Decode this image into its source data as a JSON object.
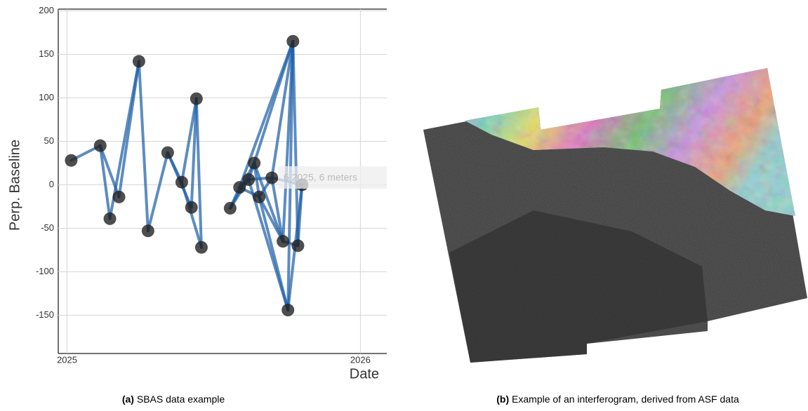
{
  "chart_data": {
    "type": "network",
    "xlabel": "Date",
    "ylabel": "Perp. Baseline",
    "x": [
      2025.014,
      2025.113,
      2025.146,
      2025.177,
      2025.245,
      2025.276,
      2025.343,
      2025.391,
      2025.424,
      2025.441,
      2025.458,
      2025.556,
      2025.588,
      2025.619,
      2025.638,
      2025.655,
      2025.698,
      2025.736,
      2025.753,
      2025.77,
      2025.787,
      2025.801
    ],
    "values": [
      28,
      45,
      -39,
      -14,
      142,
      -53,
      37,
      3,
      -26,
      99,
      -72,
      -27,
      -3,
      6,
      25,
      -14,
      8,
      -65,
      -144,
      165,
      -70,
      0
    ],
    "edges": [
      [
        0,
        1
      ],
      [
        1,
        2
      ],
      [
        1,
        3
      ],
      [
        2,
        4
      ],
      [
        3,
        4
      ],
      [
        4,
        5
      ],
      [
        5,
        6
      ],
      [
        6,
        7
      ],
      [
        6,
        8
      ],
      [
        7,
        9
      ],
      [
        8,
        9
      ],
      [
        9,
        10
      ],
      [
        7,
        10
      ],
      [
        11,
        12
      ],
      [
        11,
        14
      ],
      [
        11,
        13
      ],
      [
        12,
        13
      ],
      [
        12,
        15
      ],
      [
        13,
        14
      ],
      [
        13,
        16
      ],
      [
        14,
        15
      ],
      [
        14,
        17
      ],
      [
        15,
        16
      ],
      [
        15,
        18
      ],
      [
        16,
        17
      ],
      [
        16,
        19
      ],
      [
        14,
        19
      ],
      [
        12,
        19
      ],
      [
        17,
        19
      ],
      [
        18,
        19
      ],
      [
        17,
        20
      ],
      [
        18,
        21
      ],
      [
        19,
        20
      ],
      [
        20,
        21
      ],
      [
        13,
        18
      ],
      [
        16,
        21
      ],
      [
        15,
        17
      ]
    ],
    "edge_color": "#1f5fa8",
    "node_color": "#222222",
    "xlim": [
      2024.97,
      2026.09
    ],
    "xticks": [
      2025,
      2026
    ],
    "ylim": [
      -194,
      202
    ],
    "yticks": [
      -150,
      -100,
      -50,
      0,
      50,
      100,
      150,
      200
    ],
    "grid": true,
    "tooltip": "6 2025, 6 meters"
  },
  "captions": [
    {
      "label": "(a)",
      "text": "SBAS data example"
    },
    {
      "label": "(b)",
      "text": "Example of an interferogram, derived from ASF data"
    }
  ]
}
